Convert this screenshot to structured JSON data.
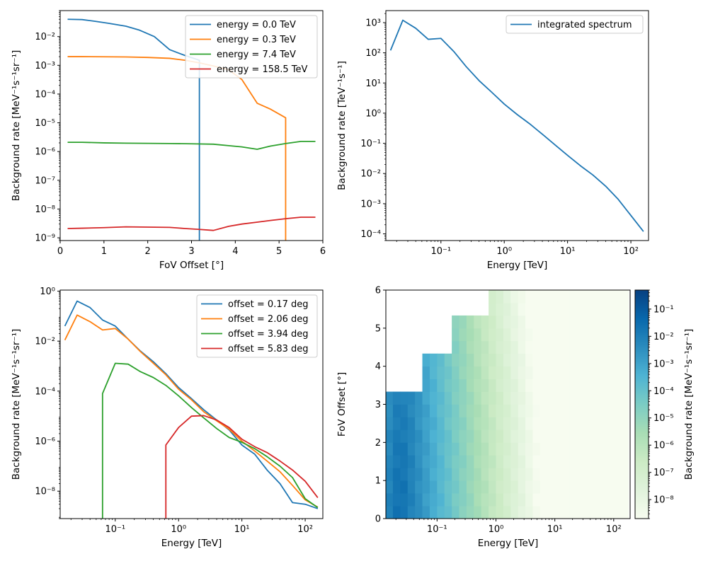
{
  "chart_data": [
    {
      "type": "line",
      "id": "panel-offset",
      "xlabel": "FoV Offset [°]",
      "ylabel": "Background rate [MeV⁻¹s⁻¹sr⁻¹]",
      "xscale": "linear",
      "yscale": "log",
      "xlim": [
        0,
        6
      ],
      "ylim": [
        8e-10,
        0.08
      ],
      "xticks": [
        {
          "v": 0,
          "label": "0"
        },
        {
          "v": 1,
          "label": "1"
        },
        {
          "v": 2,
          "label": "2"
        },
        {
          "v": 3,
          "label": "3"
        },
        {
          "v": 4,
          "label": "4"
        },
        {
          "v": 5,
          "label": "5"
        },
        {
          "v": 6,
          "label": "6"
        }
      ],
      "yticks": [
        {
          "v": 1e-09,
          "label": "10⁻⁹"
        },
        {
          "v": 1e-08,
          "label": "10⁻⁸"
        },
        {
          "v": 1e-07,
          "label": "10⁻⁷"
        },
        {
          "v": 1e-06,
          "label": "10⁻⁶"
        },
        {
          "v": 1e-05,
          "label": "10⁻⁵"
        },
        {
          "v": 0.0001,
          "label": "10⁻⁴"
        },
        {
          "v": 0.001,
          "label": "10⁻³"
        },
        {
          "v": 0.01,
          "label": "10⁻²"
        }
      ],
      "legend": "top-right",
      "series": [
        {
          "name": "energy = 0.0 TeV",
          "color": "#1f77b4",
          "x": [
            0.17,
            0.5,
            0.8,
            1.1,
            1.5,
            1.8,
            2.15,
            2.5,
            2.85,
            3.18,
            3.18
          ],
          "y": [
            0.04,
            0.039,
            0.034,
            0.029,
            0.023,
            0.017,
            0.01,
            0.0035,
            0.0022,
            0.0015,
            8e-10
          ]
        },
        {
          "name": "energy = 0.3 TeV",
          "color": "#ff7f0e",
          "x": [
            0.17,
            0.5,
            1.0,
            1.5,
            2.0,
            2.5,
            2.85,
            3.2,
            3.5,
            3.85,
            4.15,
            4.5,
            4.8,
            5.15,
            5.15
          ],
          "y": [
            0.002,
            0.002,
            0.00198,
            0.00195,
            0.00188,
            0.00175,
            0.0015,
            0.0012,
            0.00095,
            0.0007,
            0.00032,
            4.8e-05,
            3e-05,
            1.5e-05,
            8e-10
          ]
        },
        {
          "name": "energy = 7.4 TeV",
          "color": "#2ca02c",
          "x": [
            0.17,
            0.5,
            1.0,
            1.5,
            2.0,
            2.5,
            3.0,
            3.5,
            3.85,
            4.15,
            4.5,
            4.8,
            5.15,
            5.5,
            5.83
          ],
          "y": [
            2.1e-06,
            2.1e-06,
            2e-06,
            1.95e-06,
            1.93e-06,
            1.9e-06,
            1.86e-06,
            1.8e-06,
            1.6e-06,
            1.45e-06,
            1.2e-06,
            1.55e-06,
            1.9e-06,
            2.25e-06,
            2.25e-06
          ]
        },
        {
          "name": "energy = 158.5 TeV",
          "color": "#d62728",
          "x": [
            0.17,
            0.5,
            1.0,
            1.5,
            2.0,
            2.5,
            2.85,
            3.18,
            3.5,
            3.85,
            4.15,
            4.5,
            4.8,
            5.15,
            5.5,
            5.83
          ],
          "y": [
            2.1e-09,
            2.15e-09,
            2.25e-09,
            2.4e-09,
            2.35e-09,
            2.3e-09,
            2.1e-09,
            1.95e-09,
            1.8e-09,
            2.5e-09,
            3e-09,
            3.5e-09,
            4e-09,
            4.6e-09,
            5.2e-09,
            5.2e-09
          ]
        }
      ]
    },
    {
      "type": "line",
      "id": "panel-integrated",
      "xlabel": "Energy [TeV]",
      "ylabel": "Background rate [TeV⁻¹s⁻¹]",
      "xscale": "log",
      "yscale": "log",
      "xlim": [
        0.0135,
        190
      ],
      "ylim": [
        6e-05,
        2500
      ],
      "xticks": [
        {
          "v": 0.1,
          "label": "10⁻¹"
        },
        {
          "v": 1,
          "label": "10⁰"
        },
        {
          "v": 10,
          "label": "10¹"
        },
        {
          "v": 100,
          "label": "10²"
        }
      ],
      "yticks": [
        {
          "v": 0.0001,
          "label": "10⁻⁴"
        },
        {
          "v": 0.001,
          "label": "10⁻³"
        },
        {
          "v": 0.01,
          "label": "10⁻²"
        },
        {
          "v": 0.1,
          "label": "10⁻¹"
        },
        {
          "v": 1,
          "label": "10⁰"
        },
        {
          "v": 10,
          "label": "10¹"
        },
        {
          "v": 100,
          "label": "10²"
        },
        {
          "v": 1000,
          "label": "10³"
        }
      ],
      "legend": "top-right",
      "series": [
        {
          "name": "integrated spectrum",
          "color": "#1f77b4",
          "x": [
            0.016,
            0.025,
            0.04,
            0.063,
            0.1,
            0.16,
            0.25,
            0.4,
            0.63,
            1.0,
            1.6,
            2.5,
            4.0,
            6.3,
            10,
            16,
            25,
            40,
            63,
            158
          ],
          "y": [
            120,
            1200,
            650,
            280,
            300,
            110,
            35,
            12,
            5,
            2,
            0.9,
            0.45,
            0.2,
            0.09,
            0.04,
            0.018,
            0.009,
            0.0038,
            0.0014,
            0.00012
          ]
        }
      ]
    },
    {
      "type": "line",
      "id": "panel-energy",
      "xlabel": "Energy [TeV]",
      "ylabel": "Background rate [MeV⁻¹s⁻¹sr⁻¹]",
      "xscale": "log",
      "yscale": "log",
      "xlim": [
        0.0135,
        190
      ],
      "ylim": [
        8e-10,
        1.1
      ],
      "xticks": [
        {
          "v": 0.1,
          "label": "10⁻¹"
        },
        {
          "v": 1,
          "label": "10⁰"
        },
        {
          "v": 10,
          "label": "10¹"
        },
        {
          "v": 100,
          "label": "10²"
        }
      ],
      "yticks": [
        {
          "v": 1e-08,
          "label": "10⁻⁸"
        },
        {
          "v": 1e-06,
          "label": "10⁻⁶"
        },
        {
          "v": 0.0001,
          "label": "10⁻⁴"
        },
        {
          "v": 0.01,
          "label": "10⁻²"
        },
        {
          "v": 1,
          "label": "10⁰"
        }
      ],
      "legend": "top-right",
      "series": [
        {
          "name": "offset = 0.17 deg",
          "color": "#1f77b4",
          "x": [
            0.016,
            0.025,
            0.04,
            0.063,
            0.1,
            0.16,
            0.25,
            0.4,
            0.63,
            1.0,
            1.6,
            2.5,
            4.0,
            6.3,
            10,
            16,
            25,
            40,
            63,
            100,
            158
          ],
          "y": [
            0.04,
            0.4,
            0.22,
            0.07,
            0.04,
            0.012,
            0.004,
            0.0015,
            0.0005,
            0.00014,
            5e-05,
            1.8e-05,
            7e-06,
            2.8e-06,
            7e-07,
            3e-07,
            7e-08,
            2e-08,
            3.5e-09,
            3e-09,
            2e-09
          ]
        },
        {
          "name": "offset = 2.06 deg",
          "color": "#ff7f0e",
          "x": [
            0.016,
            0.025,
            0.04,
            0.063,
            0.1,
            0.16,
            0.25,
            0.4,
            0.63,
            1.0,
            1.6,
            2.5,
            4.0,
            6.3,
            10,
            16,
            25,
            40,
            63,
            100,
            158
          ],
          "y": [
            0.011,
            0.11,
            0.06,
            0.028,
            0.032,
            0.012,
            0.0038,
            0.0013,
            0.00045,
            0.00012,
            4.5e-05,
            1.5e-05,
            6.5e-06,
            3e-06,
            1e-06,
            4e-07,
            1.6e-07,
            6e-08,
            1.7e-08,
            4.5e-09,
            2.3e-09
          ]
        },
        {
          "name": "offset = 3.94 deg",
          "color": "#2ca02c",
          "x": [
            0.063,
            0.063,
            0.1,
            0.16,
            0.25,
            0.4,
            0.63,
            1.0,
            1.6,
            2.5,
            4.0,
            6.3,
            10,
            16,
            25,
            40,
            63,
            100,
            158
          ],
          "y": [
            8e-10,
            8e-05,
            0.0013,
            0.0012,
            0.0006,
            0.00035,
            0.00017,
            6.5e-05,
            2.2e-05,
            8.5e-06,
            3.2e-06,
            1.4e-06,
            9e-07,
            5e-07,
            2.4e-07,
            1e-07,
            3.5e-08,
            5e-09,
            2.2e-09
          ]
        },
        {
          "name": "offset = 5.83 deg",
          "color": "#d62728",
          "x": [
            0.63,
            0.63,
            1.0,
            1.6,
            2.5,
            4.0,
            6.3,
            10,
            16,
            25,
            40,
            63,
            100,
            158
          ],
          "y": [
            8e-10,
            7e-07,
            3.5e-06,
            1e-05,
            1.05e-05,
            7e-06,
            3.5e-06,
            1.2e-06,
            6e-07,
            3.5e-07,
            1.6e-07,
            7e-08,
            2.5e-08,
            5.5e-09
          ]
        }
      ]
    },
    {
      "type": "heatmap",
      "id": "panel-heatmap",
      "xlabel": "Energy [TeV]",
      "ylabel": "FoV Offset [°]",
      "xscale": "log",
      "yscale": "linear",
      "xlim": [
        0.0135,
        190
      ],
      "ylim": [
        0,
        6
      ],
      "xticks": [
        {
          "v": 0.1,
          "label": "10⁻¹"
        },
        {
          "v": 1,
          "label": "10⁰"
        },
        {
          "v": 10,
          "label": "10¹"
        },
        {
          "v": 100,
          "label": "10²"
        }
      ],
      "yticks": [
        {
          "v": 0,
          "label": "0"
        },
        {
          "v": 1,
          "label": "1"
        },
        {
          "v": 2,
          "label": "2"
        },
        {
          "v": 3,
          "label": "3"
        },
        {
          "v": 4,
          "label": "4"
        },
        {
          "v": 5,
          "label": "5"
        },
        {
          "v": 6,
          "label": "6"
        }
      ],
      "energy_edges_log10": [
        -1.875,
        -1.75,
        -1.625,
        -1.5,
        -1.375,
        -1.25,
        -1.125,
        -1,
        -0.875,
        -0.75,
        -0.625,
        -0.5,
        -0.375,
        -0.25,
        -0.125,
        0,
        0.125,
        0.25,
        0.375,
        0.5,
        0.625,
        0.75,
        0.875,
        1,
        1.125,
        1.25,
        1.375,
        1.5,
        1.625,
        1.75,
        1.875,
        2,
        2.125,
        2.25
      ],
      "offset_edges": [
        0,
        0.333,
        0.667,
        1,
        1.333,
        1.667,
        2,
        2.333,
        2.667,
        3,
        3.333,
        3.667,
        4,
        4.333,
        4.667,
        5,
        5.333,
        5.667,
        6
      ],
      "offset_limits_deg": [
        3.33,
        3.33,
        3.33,
        3.33,
        3.33,
        4.33,
        4.33,
        4.33,
        4.33,
        5.33,
        5.33,
        5.33,
        5.33,
        5.33,
        6,
        6,
        6,
        6,
        6,
        6,
        6,
        6,
        6,
        6,
        6,
        6,
        6,
        6,
        6,
        6,
        6,
        6,
        6
      ],
      "colorbar": {
        "label": "Background rate [MeV⁻¹s⁻¹sr⁻¹]",
        "scale": "log",
        "range": [
          2e-09,
          0.5
        ],
        "ticks": [
          {
            "v": 1e-08,
            "label": "10⁻⁸"
          },
          {
            "v": 1e-07,
            "label": "10⁻⁷"
          },
          {
            "v": 1e-06,
            "label": "10⁻⁶"
          },
          {
            "v": 1e-05,
            "label": "10⁻⁵"
          },
          {
            "v": 0.0001,
            "label": "10⁻⁴"
          },
          {
            "v": 0.001,
            "label": "10⁻³"
          },
          {
            "v": 0.01,
            "label": "10⁻²"
          },
          {
            "v": 0.1,
            "label": "10⁻¹"
          }
        ],
        "colors": [
          "#f7fcf0",
          "#e0f3db",
          "#ccebc5",
          "#a8ddb5",
          "#7bccc4",
          "#4eb3d3",
          "#2b8cbe",
          "#0868ac",
          "#084081"
        ]
      }
    }
  ]
}
